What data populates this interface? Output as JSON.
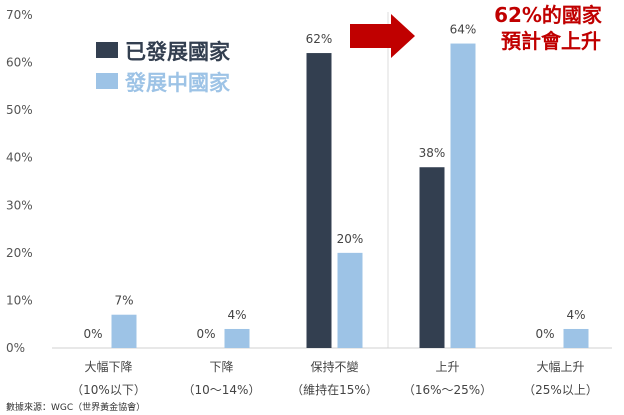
{
  "chart_data": {
    "type": "bar",
    "categories": [
      {
        "line1": "大幅下降",
        "line2": "（10%以下）"
      },
      {
        "line1": "下降",
        "line2": "（10～14%）"
      },
      {
        "line1": "保持不變",
        "line2": "（維持在15%）"
      },
      {
        "line1": "上升",
        "line2": "（16%～25%）"
      },
      {
        "line1": "大幅上升",
        "line2": "（25%以上）"
      }
    ],
    "series": [
      {
        "name": "已發展國家",
        "color": "#333f50",
        "values": [
          0,
          0,
          62,
          38,
          0
        ],
        "labels": [
          "0%",
          "0%",
          "62%",
          "38%",
          "0%"
        ]
      },
      {
        "name": "發展中國家",
        "color": "#9dc3e6",
        "values": [
          7,
          4,
          20,
          64,
          4
        ],
        "labels": [
          "7%",
          "4%",
          "20%",
          "64%",
          "4%"
        ]
      }
    ],
    "ylim": [
      0,
      70
    ],
    "yticks": [
      "0%",
      "10%",
      "20%",
      "30%",
      "40%",
      "50%",
      "60%",
      "70%"
    ],
    "grid": false,
    "legend_position": "top-left",
    "callout": {
      "line1": "62%的國家",
      "line2": "預計會上升"
    },
    "source": "數據來源：WGC（世界黃金協會）"
  }
}
